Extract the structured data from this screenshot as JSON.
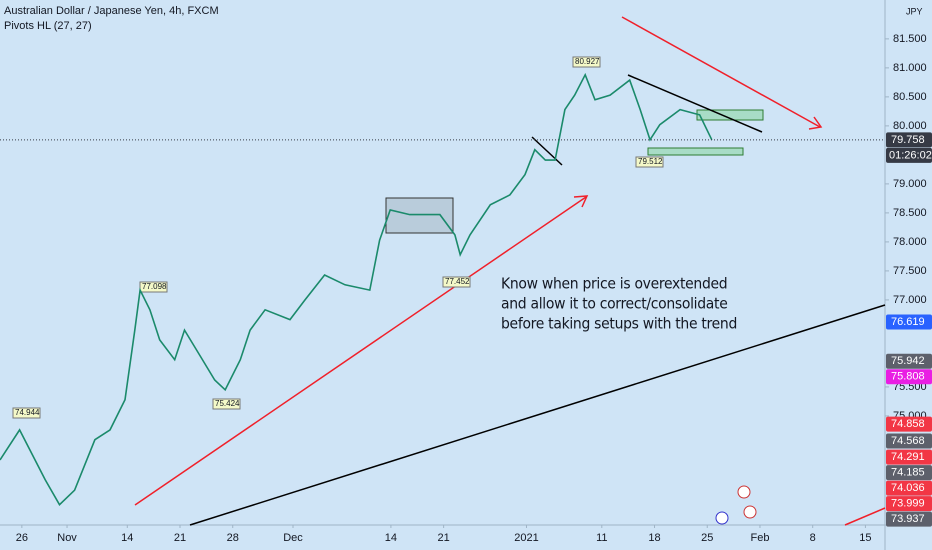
{
  "chart_data": {
    "type": "line",
    "title": "Australian Dollar / Japanese Yen, 4h, FXCM",
    "subtitle": "Pivots HL (27, 27)",
    "currency": "JPY",
    "color": "#1b8a6b",
    "x": [
      -2.9,
      -0.3,
      3.1,
      5.0,
      7.0,
      9.7,
      11.7,
      13.7,
      15.0,
      15.7,
      17.0,
      18.3,
      20.3,
      21.6,
      23.6,
      25.6,
      27.0,
      29.0,
      30.3,
      32.3,
      35.6,
      37.6,
      40.2,
      42.9,
      46.2,
      47.5,
      48.9,
      51.5,
      55.5,
      57.5,
      58.2,
      59.5,
      62.2,
      64.8,
      66.8,
      68.1,
      69.5,
      70.8,
      72.1,
      73.4,
      74.8,
      76.1,
      78.1,
      80.7,
      82.1,
      83.4,
      84.7,
      87.4,
      90.0,
      91.6
    ],
    "values": [
      74.24,
      74.76,
      73.9,
      73.47,
      73.72,
      74.59,
      74.76,
      75.28,
      76.48,
      77.17,
      76.83,
      76.31,
      75.97,
      76.48,
      76.05,
      75.62,
      75.45,
      75.97,
      76.48,
      76.83,
      76.66,
      77.0,
      77.43,
      77.26,
      77.17,
      78.03,
      78.55,
      78.47,
      78.47,
      78.12,
      77.78,
      78.12,
      78.64,
      78.81,
      79.16,
      79.59,
      79.41,
      79.41,
      80.28,
      80.53,
      80.88,
      80.45,
      80.53,
      80.79,
      80.28,
      79.76,
      80.02,
      80.28,
      80.19,
      79.76
    ],
    "xlim": [
      -2.9,
      114.6
    ],
    "ylim": [
      73.12,
      82.17
    ],
    "xticks": [
      {
        "value": 0,
        "label": "26"
      },
      {
        "value": 6,
        "label": "Nov"
      },
      14,
      21,
      28,
      {
        "value": 36,
        "label": "Dec"
      },
      {
        "value": 49,
        "label": "14"
      },
      {
        "value": 56,
        "label": "21"
      },
      {
        "value": 67,
        "label": "2021"
      },
      {
        "value": 77,
        "label": "11"
      },
      {
        "value": 84,
        "label": "18"
      },
      {
        "value": 91,
        "label": "25"
      },
      {
        "value": 98,
        "label": "Feb"
      },
      {
        "value": 105,
        "label": "8"
      },
      {
        "value": 112,
        "label": "15"
      }
    ],
    "yticks": [
      {
        "value": 81.5,
        "label": "81.500"
      },
      {
        "value": 81,
        "label": "81.000"
      },
      {
        "value": 80.5,
        "label": "80.500"
      },
      {
        "value": 80,
        "label": "80.000"
      },
      {
        "value": 79,
        "label": "79.000"
      },
      {
        "value": 78.5,
        "label": "78.500"
      },
      {
        "value": 78,
        "label": "78.000"
      },
      {
        "value": 77.5,
        "label": "77.500"
      },
      {
        "value": 77,
        "label": "77.000"
      },
      {
        "value": 75.5,
        "label": "75.500"
      },
      {
        "value": 75,
        "label": "75.000"
      }
    ],
    "price_tags": [
      {
        "value": 79.758,
        "color": "#363a45"
      },
      {
        "value": 76.619,
        "color": "#2962ff"
      },
      {
        "value": 75.942,
        "color": "#5d606b"
      },
      {
        "value": 75.808,
        "color": "#e91ee3"
      },
      {
        "value": 74.858,
        "color": "#f23645"
      },
      {
        "value": 74.568,
        "color": "#5d606b"
      },
      {
        "value": 74.291,
        "color": "#f23645"
      },
      {
        "value": 74.185,
        "color": "#5d606b"
      },
      {
        "value": 74.036,
        "color": "#f23645"
      },
      {
        "value": 73.999,
        "color": "#f23645"
      },
      {
        "value": 73.937,
        "color": "#5d606b"
      }
    ],
    "countdown": "01:26:02",
    "pivot_labels": [
      74.944,
      77.098,
      75.424,
      77.452,
      80.927,
      79.512
    ],
    "annotation": [
      "Know when price is overextended",
      "and allow it to correct/consolidate",
      "before taking setups with the trend"
    ]
  }
}
